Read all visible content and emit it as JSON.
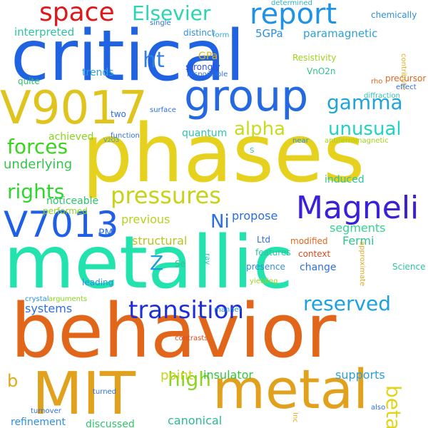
{
  "words": [
    {
      "text": "phases",
      "color": "#e6d21e",
      "orientation": "horizontal"
    },
    {
      "text": "critical",
      "color": "#1f63e3",
      "orientation": "horizontal"
    },
    {
      "text": "metallic",
      "color": "#22e3ad",
      "orientation": "horizontal"
    },
    {
      "text": "behavior",
      "color": "#e2661a",
      "orientation": "horizontal"
    },
    {
      "text": "MIT",
      "color": "#e1a11c",
      "orientation": "horizontal"
    },
    {
      "text": "metal",
      "color": "#e1a11c",
      "orientation": "horizontal"
    },
    {
      "text": "V9017",
      "color": "#e0c41e",
      "orientation": "horizontal"
    },
    {
      "text": "group",
      "color": "#2469e1",
      "orientation": "horizontal"
    },
    {
      "text": "V7013",
      "color": "#1f5ee6",
      "orientation": "horizontal"
    },
    {
      "text": "Magneli",
      "color": "#3a20d8",
      "orientation": "horizontal"
    },
    {
      "text": "report",
      "color": "#1f93e6",
      "orientation": "horizontal"
    },
    {
      "text": "space",
      "color": "#e01818",
      "orientation": "horizontal"
    },
    {
      "text": "Elsevier",
      "color": "#2ad6b0",
      "orientation": "horizontal"
    },
    {
      "text": "pressures",
      "color": "#c8d218",
      "orientation": "horizontal"
    },
    {
      "text": "transition",
      "color": "#1d2fd6",
      "orientation": "horizontal"
    },
    {
      "text": "reserved",
      "color": "#1da2e0",
      "orientation": "horizontal"
    },
    {
      "text": "alpha",
      "color": "#c8dc1e",
      "orientation": "horizontal"
    },
    {
      "text": "gamma",
      "color": "#1ea4d8",
      "orientation": "horizontal"
    },
    {
      "text": "unusual",
      "color": "#20d4c4",
      "orientation": "horizontal"
    },
    {
      "text": "forces",
      "color": "#3ad41e",
      "orientation": "horizontal"
    },
    {
      "text": "rights",
      "color": "#2ed62e",
      "orientation": "horizontal"
    },
    {
      "text": "high",
      "color": "#8ad41e",
      "orientation": "horizontal"
    },
    {
      "text": "beta",
      "color": "#e0d41e",
      "orientation": "vertical"
    },
    {
      "text": "ht",
      "color": "#2e7fe0",
      "orientation": "horizontal"
    },
    {
      "text": "Ni",
      "color": "#2e6fe0",
      "orientation": "horizontal"
    },
    {
      "text": "Z",
      "color": "#1e9fd8",
      "orientation": "horizontal"
    },
    {
      "text": "b",
      "color": "#e0a81e",
      "orientation": "horizontal"
    },
    {
      "text": "interpreted",
      "color": "#2ec4a0",
      "orientation": "horizontal"
    },
    {
      "text": "5GPa",
      "color": "#2a8fe0",
      "orientation": "horizontal"
    },
    {
      "text": "paramagnetic",
      "color": "#2e9fd8",
      "orientation": "horizontal"
    },
    {
      "text": "underlying",
      "color": "#36c44a",
      "orientation": "horizontal"
    },
    {
      "text": "propose",
      "color": "#2a6fd8",
      "orientation": "horizontal"
    },
    {
      "text": "previous",
      "color": "#b8d21e",
      "orientation": "horizontal"
    },
    {
      "text": "structural",
      "color": "#b8c41e",
      "orientation": "horizontal"
    },
    {
      "text": "segments",
      "color": "#2ed690",
      "orientation": "horizontal"
    },
    {
      "text": "Fermi",
      "color": "#2ec48a",
      "orientation": "horizontal"
    },
    {
      "text": "systems",
      "color": "#2e6fe0",
      "orientation": "horizontal"
    },
    {
      "text": "point",
      "color": "#c8d21e",
      "orientation": "horizontal"
    },
    {
      "text": "insulator",
      "color": "#30c83a",
      "orientation": "horizontal"
    },
    {
      "text": "canonical",
      "color": "#2ab89a",
      "orientation": "horizontal"
    },
    {
      "text": "refinement",
      "color": "#2e8fe0",
      "orientation": "horizontal"
    },
    {
      "text": "supports",
      "color": "#2e9fd8",
      "orientation": "horizontal"
    },
    {
      "text": "quantum",
      "color": "#2ec4b0",
      "orientation": "horizontal"
    },
    {
      "text": "achieved",
      "color": "#8ad41e",
      "orientation": "horizontal"
    },
    {
      "text": "trends",
      "color": "#2e9fd8",
      "orientation": "horizontal"
    },
    {
      "text": "quite",
      "color": "#2ec46a",
      "orientation": "horizontal"
    },
    {
      "text": "GPa",
      "color": "#e0b41e",
      "orientation": "horizontal"
    },
    {
      "text": "strongly",
      "color": "#2e4fe0",
      "orientation": "horizontal"
    },
    {
      "text": "Resistivity",
      "color": "#a0d21e",
      "orientation": "horizontal"
    },
    {
      "text": "VnO2n",
      "color": "#2ec48a",
      "orientation": "horizontal"
    },
    {
      "text": "chemically",
      "color": "#2e8fd8",
      "orientation": "horizontal"
    },
    {
      "text": "distinct",
      "color": "#2e8fe0",
      "orientation": "horizontal"
    },
    {
      "text": "determined",
      "color": "#2eb4c4",
      "orientation": "horizontal"
    },
    {
      "text": "single",
      "color": "#2e6fe0",
      "orientation": "horizontal"
    },
    {
      "text": "form",
      "color": "#2ea4d8",
      "orientation": "horizontal"
    },
    {
      "text": "responsible",
      "color": "#2e6fe0",
      "orientation": "horizontal"
    },
    {
      "text": "contribute",
      "color": "#e0b41e",
      "orientation": "vertical"
    },
    {
      "text": "rho",
      "color": "#e0661e",
      "orientation": "horizontal"
    },
    {
      "text": "effect",
      "color": "#2e6fe0",
      "orientation": "horizontal"
    },
    {
      "text": "precursor",
      "color": "#e0661e",
      "orientation": "horizontal"
    },
    {
      "text": "diffraction",
      "color": "#2ec4b0",
      "orientation": "horizontal"
    },
    {
      "text": "two",
      "color": "#2e6fe0",
      "orientation": "horizontal"
    },
    {
      "text": "surface",
      "color": "#2e6fe0",
      "orientation": "horizontal"
    },
    {
      "text": "function",
      "color": "#2e6fe0",
      "orientation": "horizontal"
    },
    {
      "text": "V2O3",
      "color": "#2e9fd8",
      "orientation": "horizontal"
    },
    {
      "text": "near",
      "color": "#2e8fd8",
      "orientation": "horizontal"
    },
    {
      "text": "antiferromagnetic",
      "color": "#a0d21e",
      "orientation": "horizontal"
    },
    {
      "text": "S",
      "color": "#2ec48a",
      "orientation": "horizontal"
    },
    {
      "text": "induced",
      "color": "#2ec4a0",
      "orientation": "horizontal"
    },
    {
      "text": "noticeable",
      "color": "#2ec46a",
      "orientation": "horizontal"
    },
    {
      "text": "performed",
      "color": "#8ad41e",
      "orientation": "horizontal"
    },
    {
      "text": "PM",
      "color": "#2e6fe0",
      "orientation": "horizontal"
    },
    {
      "text": "Ltd",
      "color": "#2e6fe0",
      "orientation": "horizontal"
    },
    {
      "text": "modified",
      "color": "#e0661e",
      "orientation": "horizontal"
    },
    {
      "text": "context",
      "color": "#e04a1e",
      "orientation": "horizontal"
    },
    {
      "text": "features",
      "color": "#2ec4a0",
      "orientation": "horizontal"
    },
    {
      "text": "presence",
      "color": "#2e8fd8",
      "orientation": "horizontal"
    },
    {
      "text": "change",
      "color": "#2e6fe0",
      "orientation": "horizontal"
    },
    {
      "text": "approximate",
      "color": "#e0a81e",
      "orientation": "vertical"
    },
    {
      "text": "Science",
      "color": "#2ec4a0",
      "orientation": "horizontal"
    },
    {
      "text": "Se",
      "color": "#2ec48a",
      "orientation": "horizontal"
    },
    {
      "text": "ray",
      "color": "#2ec4b0",
      "orientation": "vertical"
    },
    {
      "text": "leading",
      "color": "#2e8fe0",
      "orientation": "horizontal"
    },
    {
      "text": "yielding",
      "color": "#a0d21e",
      "orientation": "horizontal"
    },
    {
      "text": "crystal",
      "color": "#2e8fd8",
      "orientation": "horizontal"
    },
    {
      "text": "arguments",
      "color": "#8ad41e",
      "orientation": "horizontal"
    },
    {
      "text": "manner",
      "color": "#2e8fd8",
      "orientation": "horizontal"
    },
    {
      "text": "contrasts",
      "color": "#e04a1e",
      "orientation": "horizontal"
    },
    {
      "text": "turned",
      "color": "#2e6fe0",
      "orientation": "horizontal"
    },
    {
      "text": "turnover",
      "color": "#2e6fe0",
      "orientation": "horizontal"
    },
    {
      "text": "discussed",
      "color": "#2ec46a",
      "orientation": "horizontal"
    },
    {
      "text": "Inc",
      "color": "#e0b41e",
      "orientation": "vertical"
    },
    {
      "text": "also",
      "color": "#2e6fe0",
      "orientation": "horizontal"
    }
  ]
}
